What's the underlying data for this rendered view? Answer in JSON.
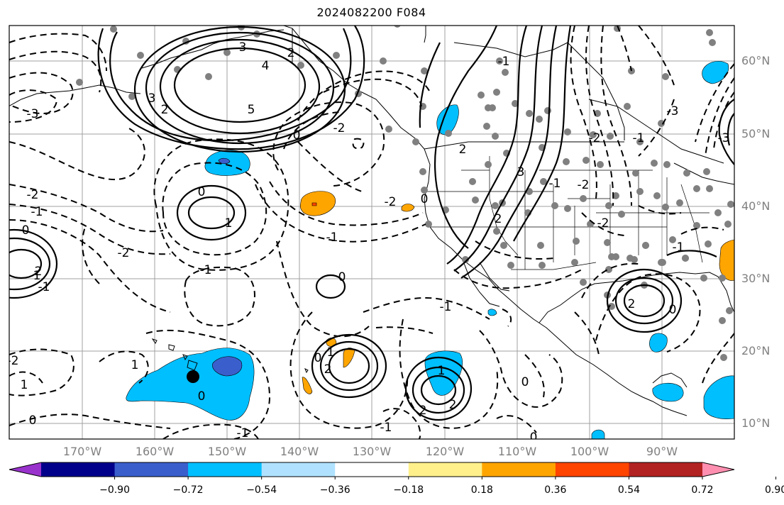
{
  "title": "2024082200 F084",
  "map": {
    "lat_labels": [
      "60°N",
      "50°N",
      "40°N",
      "30°N",
      "20°N",
      "10°N"
    ],
    "lon_labels": [
      "170°W",
      "160°W",
      "150°W",
      "140°W",
      "130°W",
      "120°W",
      "110°W",
      "100°W",
      "90°W"
    ],
    "contour_labels": [
      "3",
      "4",
      "5",
      "3",
      "2",
      "2",
      "0",
      "-2",
      "-3",
      "-2",
      "-1",
      "0",
      "0",
      "1",
      "-1",
      "-2",
      "-1",
      "0",
      "-2",
      "-1",
      "1",
      "-2",
      "0",
      "1",
      "-1",
      "2",
      "1",
      "2",
      "-1",
      "0",
      "0",
      "0",
      "2",
      "1",
      "2",
      "1",
      "2",
      "0",
      "-1",
      "0",
      "-1",
      "-3",
      "-2",
      "-1",
      "-2",
      "2",
      "2",
      "3",
      "-1",
      "-1",
      "-3",
      "0",
      "-2"
    ],
    "gridlines": true,
    "marker": "black-dot"
  },
  "colorbar": {
    "tick_labels": [
      "−0.90",
      "−0.72",
      "−0.54",
      "−0.36",
      "−0.18",
      "0.18",
      "0.36",
      "0.54",
      "0.72",
      "0.90"
    ],
    "colors": [
      "#9932cc",
      "#00008b",
      "#3a5fcd",
      "#00bfff",
      "#b0e2ff",
      "#ffffff",
      "#fff08c",
      "#ffa500",
      "#ff4500",
      "#b22222",
      "#ff8fb1"
    ]
  }
}
